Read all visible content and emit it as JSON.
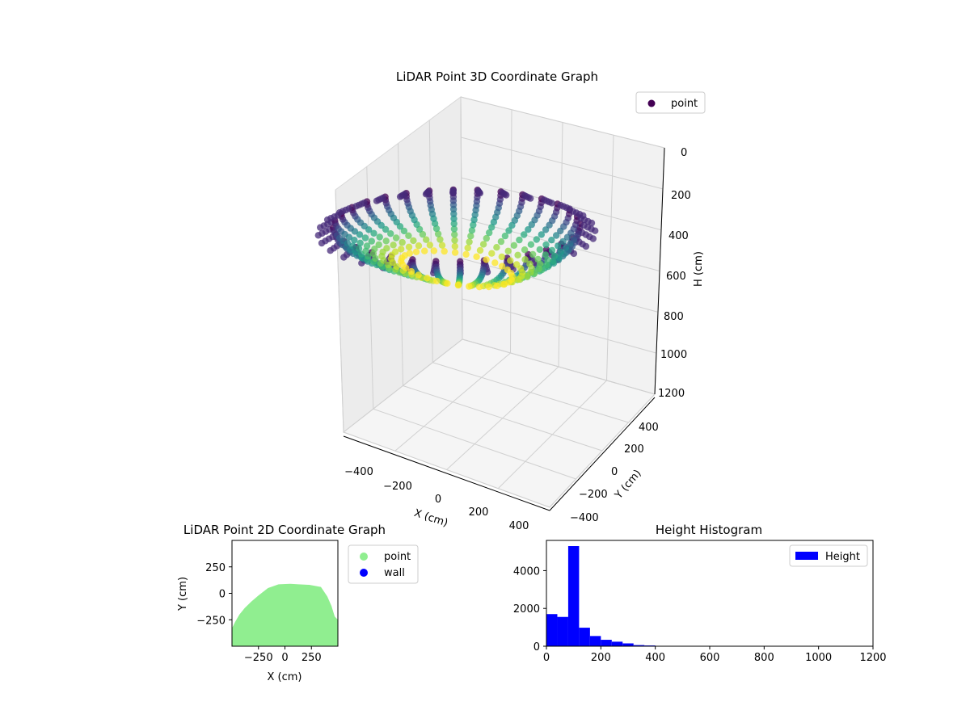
{
  "chart_data": [
    {
      "type": "scatter",
      "projection": "3d",
      "title": "LiDAR Point 3D Coordinate Graph",
      "xlabel": "X (cm)",
      "ylabel": "Y (cm)",
      "zlabel": "H (cm)",
      "xlim": [
        -450,
        450
      ],
      "ylim": [
        -450,
        450
      ],
      "zlim": [
        1200,
        0
      ],
      "z_inverted": true,
      "x_ticks": [
        "−400",
        "−200",
        "0",
        "200",
        "400"
      ],
      "y_ticks": [
        "−400",
        "−200",
        "0",
        "200",
        "400"
      ],
      "z_ticks": [
        "0",
        "200",
        "400",
        "600",
        "800",
        "1000",
        "1200"
      ],
      "legend": {
        "position": "top-right",
        "entries": [
          {
            "label": "point",
            "color": "#440154"
          }
        ]
      },
      "colormap": "viridis",
      "grid": true,
      "structure": {
        "description_of_data": "dome-shaped point cloud sweeps",
        "radius_cm": 420,
        "height_range_cm": [
          0,
          600
        ],
        "azimuth_columns": 32,
        "elevation_rows": 14
      }
    },
    {
      "type": "scatter",
      "title": "LiDAR Point 2D Coordinate Graph",
      "xlabel": "X (cm)",
      "ylabel": "Y (cm)",
      "xlim": [
        -500,
        500
      ],
      "ylim": [
        -500,
        500
      ],
      "x_ticks": [
        -250,
        0,
        250
      ],
      "y_ticks": [
        250,
        0,
        -250
      ],
      "x_tick_labels": [
        "−250",
        "0",
        "250"
      ],
      "y_tick_labels": [
        "250",
        "0",
        "−250"
      ],
      "series": [
        {
          "name": "point",
          "color": "#90ee90"
        },
        {
          "name": "wall",
          "color": "#0000ff"
        }
      ],
      "region_outline": [
        [
          -500,
          -500
        ],
        [
          -500,
          -330
        ],
        [
          -470,
          -270
        ],
        [
          -430,
          -200
        ],
        [
          -380,
          -140
        ],
        [
          -320,
          -80
        ],
        [
          -250,
          -20
        ],
        [
          -160,
          50
        ],
        [
          -60,
          85
        ],
        [
          50,
          90
        ],
        [
          130,
          85
        ],
        [
          230,
          80
        ],
        [
          340,
          60
        ],
        [
          400,
          -30
        ],
        [
          440,
          -120
        ],
        [
          470,
          -220
        ],
        [
          500,
          -250
        ],
        [
          500,
          -500
        ]
      ],
      "legend": {
        "position": "outside-right"
      }
    },
    {
      "type": "bar",
      "subtype": "histogram",
      "title": "Height Histogram",
      "xlim": [
        0,
        1200
      ],
      "ylim": [
        0,
        5600
      ],
      "x_ticks": [
        0,
        200,
        400,
        600,
        800,
        1000,
        1200
      ],
      "y_ticks": [
        0,
        2000,
        4000
      ],
      "bin_width": 40,
      "bin_start": 0,
      "values": [
        1700,
        1550,
        5300,
        980,
        540,
        340,
        240,
        150,
        60,
        40,
        20,
        12,
        8,
        5,
        4,
        3,
        2,
        1,
        1,
        1
      ],
      "color": "#0000ff",
      "legend": {
        "position": "top-right",
        "entries": [
          {
            "label": "Height",
            "color": "#0000ff"
          }
        ]
      }
    }
  ]
}
